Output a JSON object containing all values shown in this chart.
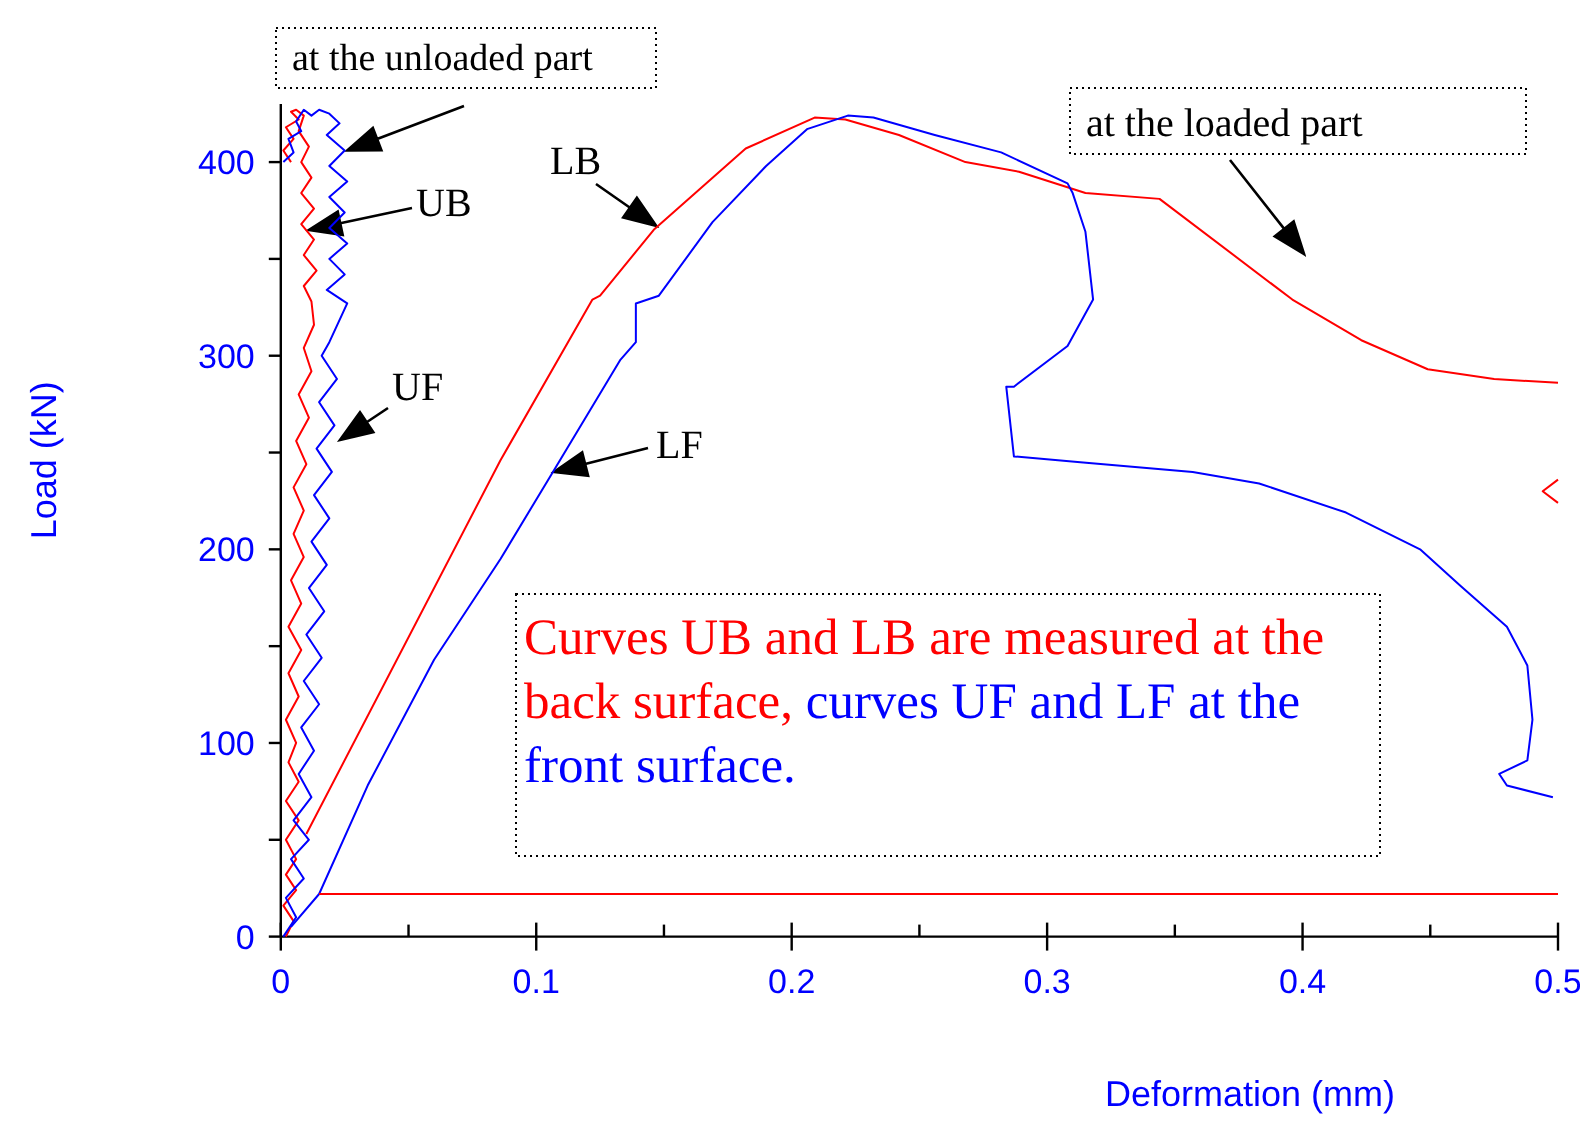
{
  "chart_data": {
    "type": "line",
    "xlabel": "Deformation (mm)",
    "ylabel": "Load (kN)",
    "xlim": [
      0,
      0.5
    ],
    "ylim": [
      0,
      430
    ],
    "xticks": [
      0,
      {
        "value": 0.05,
        "label": null
      },
      0.1,
      {
        "value": 0.15,
        "label": null
      },
      0.2,
      {
        "value": 0.25,
        "label": null
      },
      0.3,
      {
        "value": 0.35,
        "label": null
      },
      0.4,
      {
        "value": 0.45,
        "label": null
      },
      0.5
    ],
    "yticks": [
      0,
      {
        "value": 50,
        "label": null
      },
      100,
      {
        "value": 150,
        "label": null
      },
      200,
      {
        "value": 250,
        "label": null
      },
      300,
      {
        "value": 350,
        "label": null
      },
      400
    ],
    "grid": false,
    "marker": "none",
    "line_style": "solid",
    "series": [
      {
        "color": "#ff0000",
        "x": [
          0.002,
          0.005,
          0.001,
          0.006,
          0.002,
          0.006,
          0.002,
          0.007,
          0.002,
          0.007,
          0.003,
          0.006,
          0.002,
          0.007,
          0.003,
          0.008,
          0.003,
          0.008,
          0.004,
          0.009,
          0.005,
          0.009,
          0.005,
          0.01,
          0.006,
          0.011,
          0.007,
          0.012,
          0.009,
          0.013,
          0.012,
          0.009,
          0.014,
          0.009,
          0.013,
          0.008,
          0.013,
          0.008,
          0.012,
          0.008,
          0.011,
          0.007,
          0.009,
          0.006,
          0.004,
          0.007,
          0.002,
          0.005,
          0.001,
          0.004
        ],
        "values": [
          0,
          8,
          16,
          24,
          32,
          40,
          50,
          60,
          70,
          80,
          90,
          100,
          112,
          124,
          136,
          148,
          160,
          172,
          184,
          196,
          208,
          220,
          232,
          244,
          256,
          268,
          280,
          292,
          304,
          316,
          328,
          336,
          344,
          352,
          360,
          368,
          376,
          384,
          392,
          400,
          408,
          416,
          424,
          427,
          426,
          422,
          418,
          412,
          406,
          400
        ]
      },
      {
        "color": "#0000ff",
        "x": [
          0.001,
          0.006,
          0.002,
          0.009,
          0.004,
          0.011,
          0.005,
          0.012,
          0.007,
          0.013,
          0.008,
          0.015,
          0.009,
          0.016,
          0.01,
          0.017,
          0.011,
          0.018,
          0.012,
          0.019,
          0.013,
          0.02,
          0.014,
          0.021,
          0.015,
          0.022,
          0.016,
          0.019,
          0.026,
          0.018,
          0.025,
          0.019,
          0.026,
          0.019,
          0.025,
          0.019,
          0.026,
          0.019,
          0.025,
          0.018,
          0.023,
          0.019,
          0.015,
          0.012,
          0.009,
          0.006,
          0.008,
          0.003,
          0.005,
          0.001
        ],
        "values": [
          0,
          10,
          20,
          30,
          40,
          50,
          60,
          72,
          84,
          96,
          108,
          120,
          132,
          144,
          156,
          168,
          180,
          192,
          204,
          216,
          228,
          240,
          252,
          264,
          276,
          288,
          300,
          307,
          327,
          334,
          342,
          350,
          358,
          366,
          374,
          382,
          390,
          398,
          406,
          414,
          420,
          425,
          427,
          424,
          427,
          421,
          416,
          412,
          405,
          400
        ]
      },
      {
        "color": "#ff0000",
        "x": [
          0.01,
          0.086,
          0.122,
          0.125,
          0.146,
          0.182,
          0.209,
          0.221,
          0.242,
          0.268,
          0.289,
          0.315,
          0.344,
          0.396,
          0.423,
          0.449,
          0.475,
          0.5
        ],
        "values": [
          53,
          246,
          329,
          331,
          365,
          407,
          423,
          422,
          414,
          400,
          395,
          384,
          381,
          329,
          308,
          293,
          288,
          286
        ]
      },
      {
        "color": "#0000ff",
        "x": [
          0.004,
          0.015,
          0.034,
          0.06,
          0.086,
          0.107,
          0.133,
          0.139,
          0.139,
          0.148,
          0.169,
          0.19,
          0.206,
          0.222,
          0.232,
          0.256,
          0.282,
          0.308,
          0.31,
          0.315,
          0.318,
          0.308,
          0.287,
          0.284,
          0.287,
          0.313,
          0.357,
          0.383,
          0.417,
          0.446,
          0.462,
          0.48,
          0.488,
          0.49,
          0.488,
          0.477,
          0.48,
          0.498
        ],
        "values": [
          5,
          22,
          78,
          143,
          195,
          241,
          298,
          307,
          327,
          331,
          369,
          398,
          417,
          424,
          423,
          414,
          405,
          389,
          384,
          364,
          329,
          305,
          284,
          284,
          248,
          245,
          240,
          234,
          219,
          200,
          181,
          160,
          140,
          112,
          91,
          84,
          78,
          72
        ]
      },
      {
        "color": "#ff0000",
        "x": [
          0.015,
          0.5
        ],
        "values": [
          22,
          22
        ]
      },
      {
        "color": "#ff0000",
        "x": [
          0.5,
          0.494,
          0.5
        ],
        "values": [
          236,
          230,
          224
        ]
      }
    ],
    "annotations": [
      {
        "text": "at the unloaded part",
        "x": 0.026,
        "y": 406
      },
      {
        "text": "UB",
        "x": 0.011,
        "y": 365
      },
      "UF",
      {
        "text": "LB",
        "x": 0.147,
        "y": 367
      },
      {
        "text": "LF",
        "x": 0.107,
        "y": 240
      },
      "at the loaded part",
      "Curves UB and LB are measured at the back surface,",
      "curves UF and LF at the front surface."
    ]
  }
}
